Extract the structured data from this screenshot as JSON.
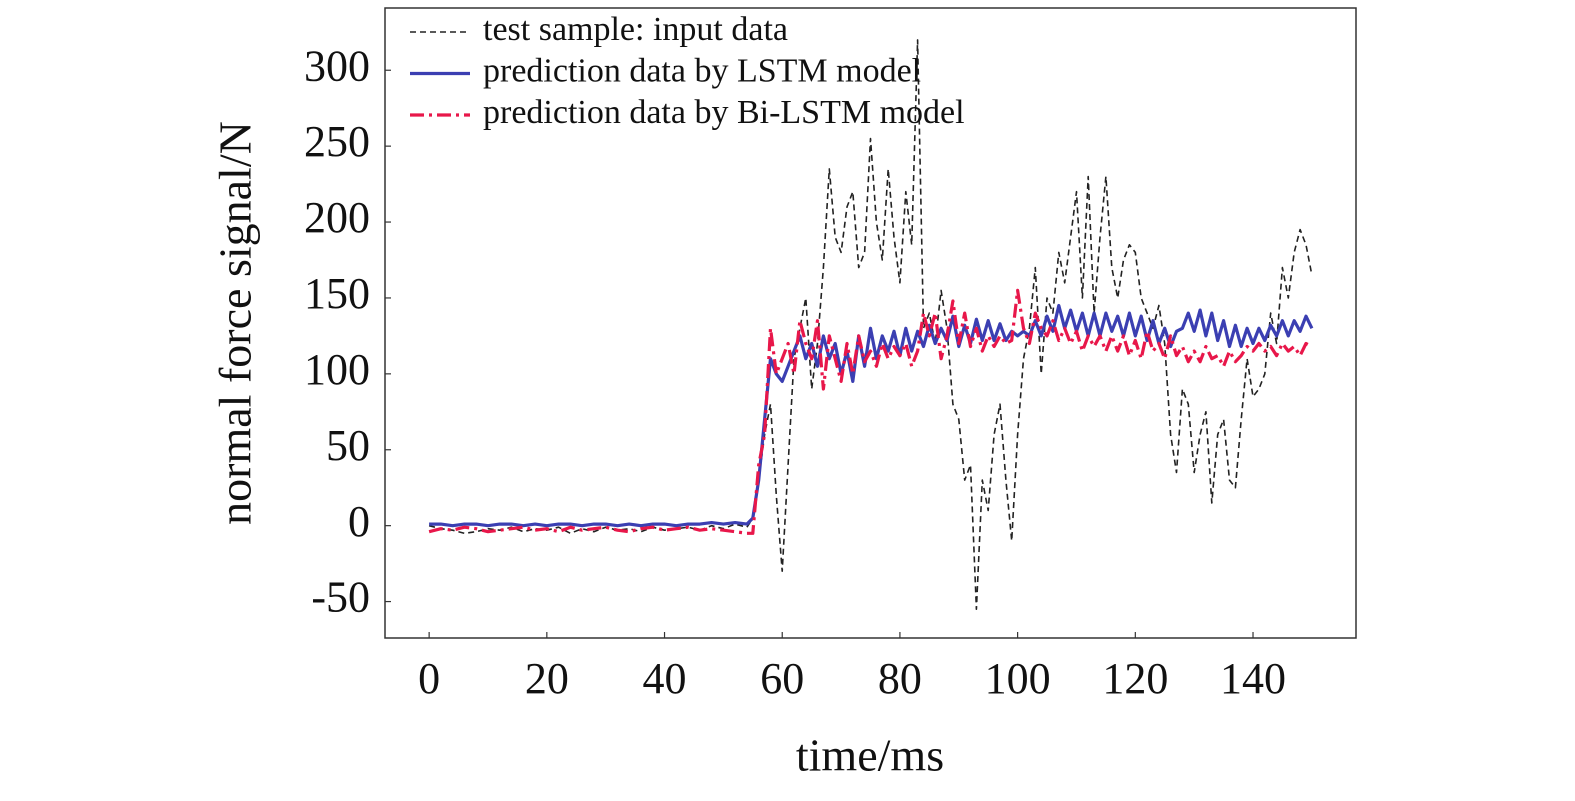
{
  "chart_data": {
    "type": "line",
    "xlabel": "time/ms",
    "ylabel": "normal force signal/N",
    "xlim": [
      -7.5,
      157.5
    ],
    "ylim": [
      -74,
      341
    ],
    "xticks": [
      0,
      20,
      40,
      60,
      80,
      100,
      120,
      140
    ],
    "yticks": [
      -50,
      0,
      50,
      100,
      150,
      200,
      250,
      300
    ],
    "grid": false,
    "legend": "upper left",
    "x": [
      0,
      2,
      4,
      6,
      8,
      10,
      12,
      14,
      16,
      18,
      20,
      22,
      24,
      26,
      28,
      30,
      32,
      34,
      36,
      38,
      40,
      42,
      44,
      46,
      48,
      50,
      52,
      54,
      55,
      56,
      57,
      58,
      59,
      60,
      61,
      62,
      63,
      64,
      65,
      66,
      67,
      68,
      69,
      70,
      71,
      72,
      73,
      74,
      75,
      76,
      77,
      78,
      79,
      80,
      81,
      82,
      83,
      84,
      85,
      86,
      87,
      88,
      89,
      90,
      91,
      92,
      93,
      94,
      95,
      96,
      97,
      98,
      99,
      100,
      101,
      102,
      103,
      104,
      105,
      106,
      107,
      108,
      109,
      110,
      111,
      112,
      113,
      114,
      115,
      116,
      117,
      118,
      119,
      120,
      121,
      122,
      123,
      124,
      125,
      126,
      127,
      128,
      129,
      130,
      131,
      132,
      133,
      134,
      135,
      136,
      137,
      138,
      139,
      140,
      141,
      142,
      143,
      144,
      145,
      146,
      147,
      148,
      149,
      150
    ],
    "series": [
      {
        "name": "test sample: input data",
        "color": "#222222",
        "dash": "dashed",
        "values": [
          0,
          -2,
          -3,
          -5,
          -4,
          -2,
          -3,
          -1,
          -4,
          -2,
          -3,
          -1,
          -5,
          -2,
          -4,
          -1,
          -3,
          -2,
          -4,
          -1,
          -3,
          -2,
          -1,
          -3,
          0,
          -2,
          1,
          -1,
          5,
          30,
          60,
          80,
          20,
          -30,
          40,
          110,
          130,
          150,
          90,
          120,
          170,
          235,
          190,
          180,
          210,
          220,
          170,
          180,
          255,
          200,
          175,
          235,
          190,
          160,
          220,
          185,
          320,
          130,
          140,
          120,
          155,
          130,
          80,
          70,
          30,
          40,
          -55,
          30,
          10,
          60,
          80,
          30,
          -10,
          60,
          110,
          130,
          170,
          100,
          150,
          140,
          180,
          160,
          190,
          220,
          150,
          230,
          140,
          190,
          230,
          170,
          150,
          175,
          185,
          180,
          150,
          140,
          130,
          145,
          120,
          60,
          35,
          90,
          80,
          35,
          60,
          75,
          15,
          60,
          70,
          30,
          25,
          70,
          110,
          85,
          90,
          100,
          140,
          120,
          170,
          150,
          180,
          195,
          185,
          165
        ]
      },
      {
        "name": "prediction data by LSTM model",
        "color": "#3b3fb2",
        "dash": "solid",
        "values": [
          1,
          1,
          0,
          1,
          1,
          0,
          1,
          1,
          0,
          1,
          0,
          1,
          1,
          0,
          1,
          1,
          0,
          1,
          0,
          1,
          1,
          0,
          1,
          1,
          2,
          1,
          2,
          1,
          5,
          30,
          70,
          110,
          100,
          95,
          105,
          115,
          125,
          110,
          120,
          105,
          125,
          110,
          120,
          100,
          115,
          95,
          125,
          105,
          130,
          110,
          125,
          115,
          128,
          112,
          130,
          115,
          128,
          118,
          132,
          120,
          130,
          122,
          138,
          118,
          132,
          120,
          136,
          122,
          135,
          122,
          133,
          122,
          128,
          125,
          128,
          125,
          135,
          125,
          138,
          128,
          145,
          130,
          142,
          128,
          140,
          125,
          140,
          125,
          140,
          128,
          138,
          125,
          140,
          125,
          138,
          122,
          135,
          120,
          130,
          118,
          128,
          130,
          140,
          128,
          142,
          125,
          140,
          122,
          135,
          118,
          132,
          118,
          130,
          120,
          130,
          122,
          132,
          125,
          135,
          125,
          135,
          128,
          138,
          130
        ]
      },
      {
        "name": "prediction data by Bi-LSTM model",
        "color": "#e8174a",
        "dash": "dashdot",
        "values": [
          -4,
          -2,
          -3,
          -1,
          -2,
          -4,
          -3,
          -2,
          -1,
          -3,
          -2,
          -4,
          -1,
          -3,
          -2,
          -1,
          -3,
          -4,
          -2,
          -1,
          -3,
          -2,
          -1,
          -3,
          -2,
          -3,
          -4,
          -5,
          -5,
          40,
          60,
          130,
          100,
          110,
          120,
          100,
          135,
          120,
          110,
          135,
          90,
          125,
          110,
          95,
          120,
          100,
          125,
          108,
          115,
          105,
          120,
          110,
          118,
          112,
          120,
          105,
          115,
          140,
          125,
          140,
          110,
          125,
          148,
          120,
          140,
          118,
          130,
          115,
          125,
          118,
          125,
          120,
          122,
          155,
          130,
          120,
          140,
          130,
          125,
          135,
          122,
          130,
          120,
          128,
          115,
          125,
          118,
          125,
          115,
          125,
          115,
          125,
          112,
          122,
          110,
          128,
          115,
          120,
          110,
          125,
          112,
          118,
          108,
          115,
          108,
          118,
          110,
          112,
          105,
          115,
          108,
          112,
          118,
          115,
          120,
          115,
          118,
          112,
          120,
          115,
          118,
          112,
          120,
          118
        ]
      }
    ]
  }
}
